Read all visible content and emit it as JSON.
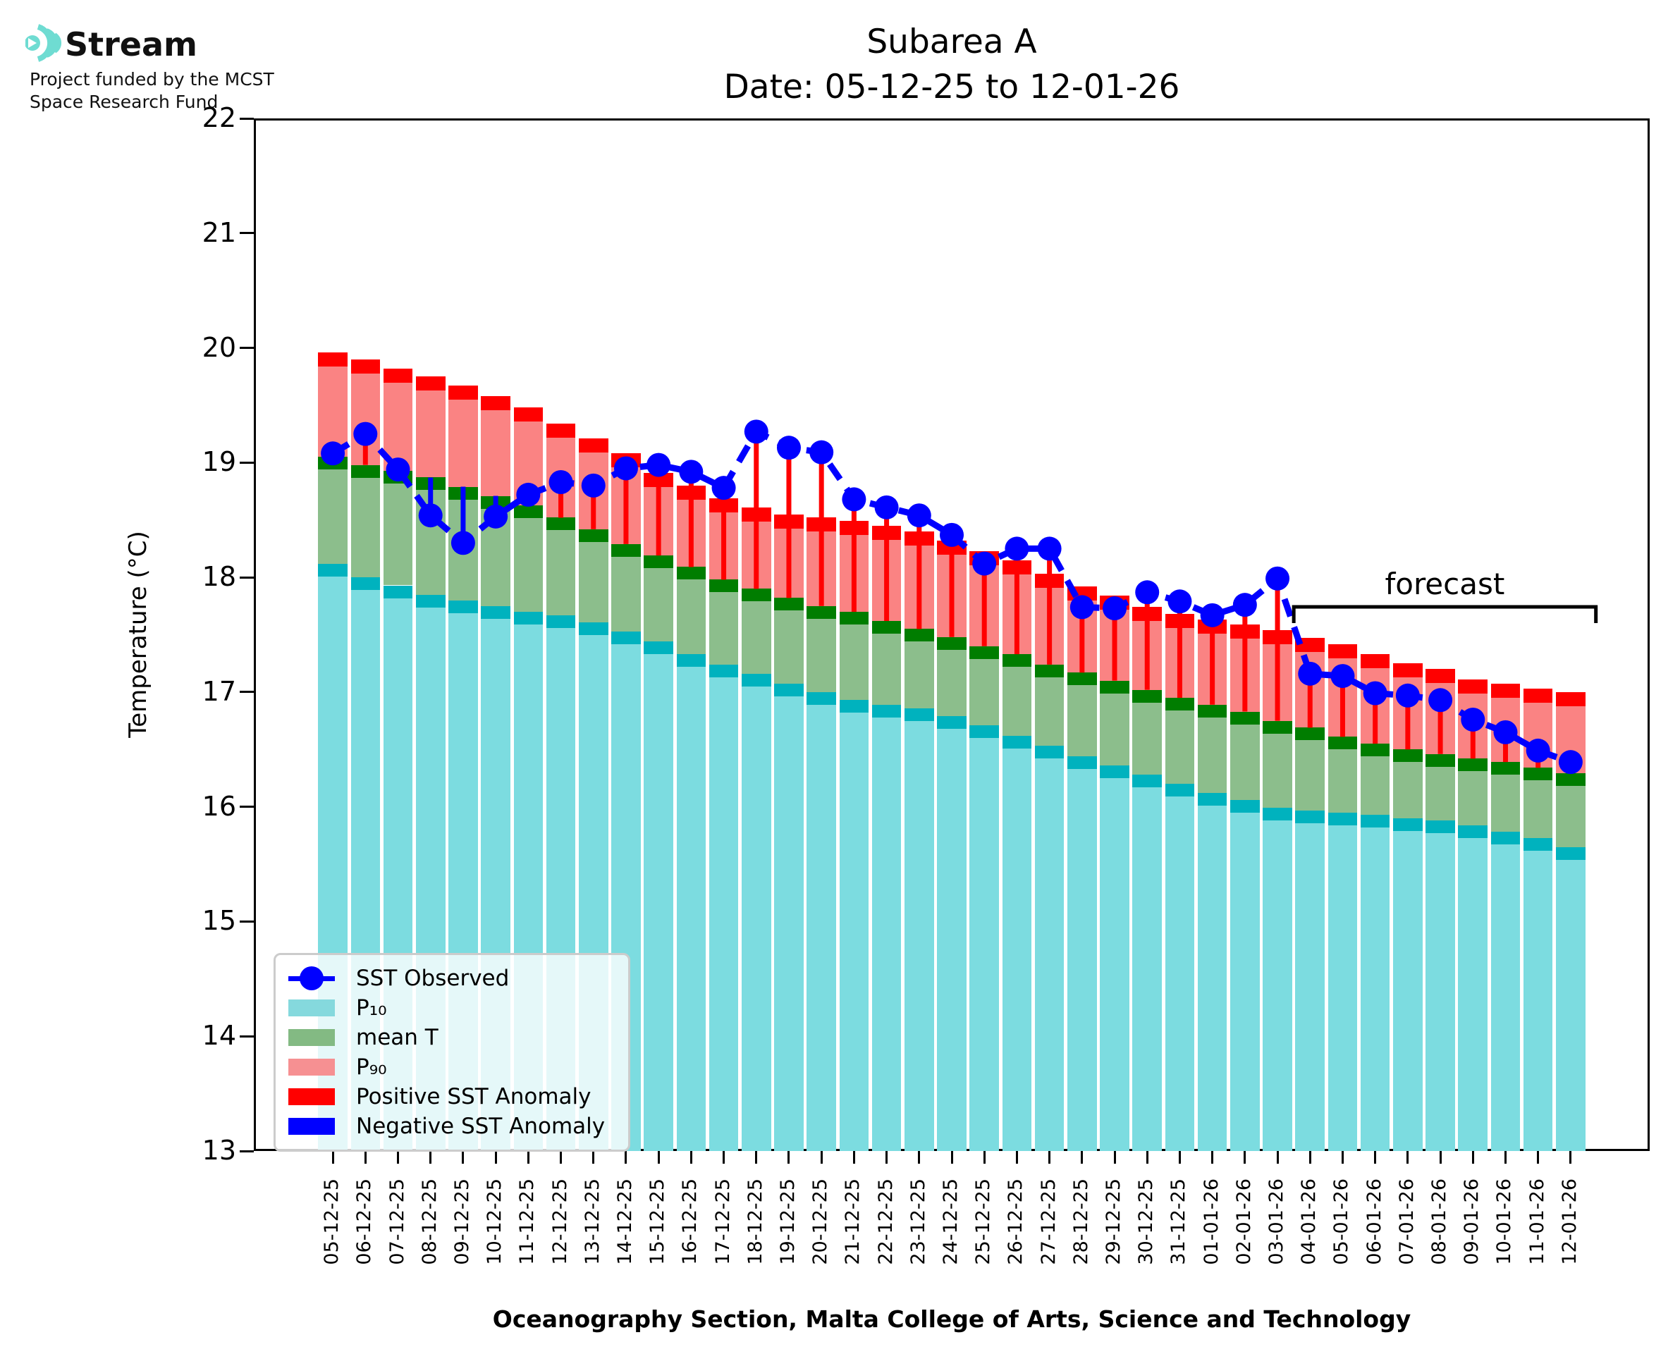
{
  "logo": {
    "brand": "Stream",
    "funding_line1": "Project funded by the MCST",
    "funding_line2": "Space Research Fund"
  },
  "title": {
    "line1": "Subarea A",
    "line2": "Date: 05-12-25 to 12-01-26"
  },
  "axes": {
    "ylabel": "Temperature (°C)",
    "xlabel": "Oceanography Section, Malta College of Arts, Science and Technology",
    "y_ticks": [
      "13",
      "14",
      "15",
      "16",
      "17",
      "18",
      "19",
      "20",
      "21",
      "22"
    ]
  },
  "annotations": {
    "forecast_label": "forecast"
  },
  "legend": {
    "items": [
      {
        "label": "SST Observed",
        "type": "line-dot",
        "color": "#0000ff"
      },
      {
        "label": "P₁₀",
        "type": "patch",
        "color": "#85d9dd"
      },
      {
        "label": "mean T",
        "type": "patch",
        "color": "#83ba83"
      },
      {
        "label": "P₉₀",
        "type": "patch",
        "color": "#f69092"
      },
      {
        "label": "Positive SST Anomaly",
        "type": "patch",
        "color": "#ff0000"
      },
      {
        "label": "Negative SST Anomaly",
        "type": "patch",
        "color": "#0000ff"
      }
    ]
  },
  "colors": {
    "p10_fill": "#7cdce0",
    "p10_cap": "#00b2be",
    "mean_fill": "#8cbe8c",
    "mean_cap": "#007d00",
    "p90_fill": "#fa8383",
    "p90_cap": "#ff0000",
    "observed": "#0000ff",
    "pos_anomaly": "#ff0000",
    "neg_anomaly": "#0000ff",
    "logo_teal": "#6fdcd2"
  },
  "chart_data": {
    "type": "bar",
    "title": "Subarea A  |  Date: 05-12-25 to 12-01-26",
    "xlabel": "Oceanography Section, Malta College of Arts, Science and Technology",
    "ylabel": "Temperature (°C)",
    "ylim": [
      13,
      22
    ],
    "grid": false,
    "legend_position": "lower left",
    "forecast_start_category": "04-01-26",
    "forecast_end_category": "12-01-26",
    "categories": [
      "05-12-25",
      "06-12-25",
      "07-12-25",
      "08-12-25",
      "09-12-25",
      "10-12-25",
      "11-12-25",
      "12-12-25",
      "13-12-25",
      "14-12-25",
      "15-12-25",
      "16-12-25",
      "17-12-25",
      "18-12-25",
      "19-12-25",
      "20-12-25",
      "21-12-25",
      "22-12-25",
      "23-12-25",
      "24-12-25",
      "25-12-25",
      "26-12-25",
      "27-12-25",
      "28-12-25",
      "29-12-25",
      "30-12-25",
      "31-12-25",
      "01-01-26",
      "02-01-26",
      "03-01-26",
      "04-01-26",
      "05-01-26",
      "06-01-26",
      "07-01-26",
      "08-01-26",
      "09-01-26",
      "10-01-26",
      "11-01-26",
      "12-01-26"
    ],
    "series": [
      {
        "name": "P₁₀",
        "role": "p10",
        "values": [
          18.12,
          18.0,
          17.93,
          17.85,
          17.8,
          17.75,
          17.7,
          17.67,
          17.61,
          17.53,
          17.44,
          17.33,
          17.24,
          17.16,
          17.07,
          17.0,
          16.93,
          16.89,
          16.86,
          16.79,
          16.71,
          16.62,
          16.53,
          16.44,
          16.36,
          16.28,
          16.2,
          16.12,
          16.06,
          15.99,
          15.97,
          15.95,
          15.93,
          15.9,
          15.88,
          15.84,
          15.78,
          15.73,
          15.65
        ]
      },
      {
        "name": "mean T",
        "role": "mean",
        "values": [
          19.05,
          18.98,
          18.93,
          18.87,
          18.79,
          18.71,
          18.63,
          18.52,
          18.42,
          18.29,
          18.19,
          18.09,
          17.98,
          17.9,
          17.82,
          17.75,
          17.7,
          17.62,
          17.55,
          17.48,
          17.4,
          17.33,
          17.24,
          17.17,
          17.1,
          17.02,
          16.95,
          16.89,
          16.83,
          16.75,
          16.69,
          16.61,
          16.55,
          16.5,
          16.46,
          16.42,
          16.39,
          16.34,
          16.29
        ]
      },
      {
        "name": "P₉₀",
        "role": "p90",
        "values": [
          19.96,
          19.9,
          19.82,
          19.75,
          19.67,
          19.58,
          19.48,
          19.34,
          19.21,
          19.08,
          18.91,
          18.8,
          18.69,
          18.61,
          18.55,
          18.52,
          18.49,
          18.45,
          18.4,
          18.32,
          18.23,
          18.15,
          18.03,
          17.92,
          17.84,
          17.74,
          17.68,
          17.63,
          17.59,
          17.54,
          17.47,
          17.42,
          17.33,
          17.25,
          17.2,
          17.11,
          17.07,
          17.03,
          17.0
        ]
      },
      {
        "name": "SST Observed",
        "role": "observed",
        "values": [
          19.08,
          19.25,
          18.94,
          18.54,
          18.3,
          18.53,
          18.72,
          18.83,
          18.8,
          18.95,
          18.98,
          18.92,
          18.78,
          19.27,
          19.13,
          19.09,
          18.68,
          18.61,
          18.54,
          18.37,
          18.12,
          18.25,
          18.25,
          17.74,
          17.73,
          17.87,
          17.79,
          17.67,
          17.76,
          17.99,
          17.16,
          17.14,
          16.99,
          16.97,
          16.93,
          16.76,
          16.65,
          16.49,
          16.39
        ]
      }
    ]
  }
}
